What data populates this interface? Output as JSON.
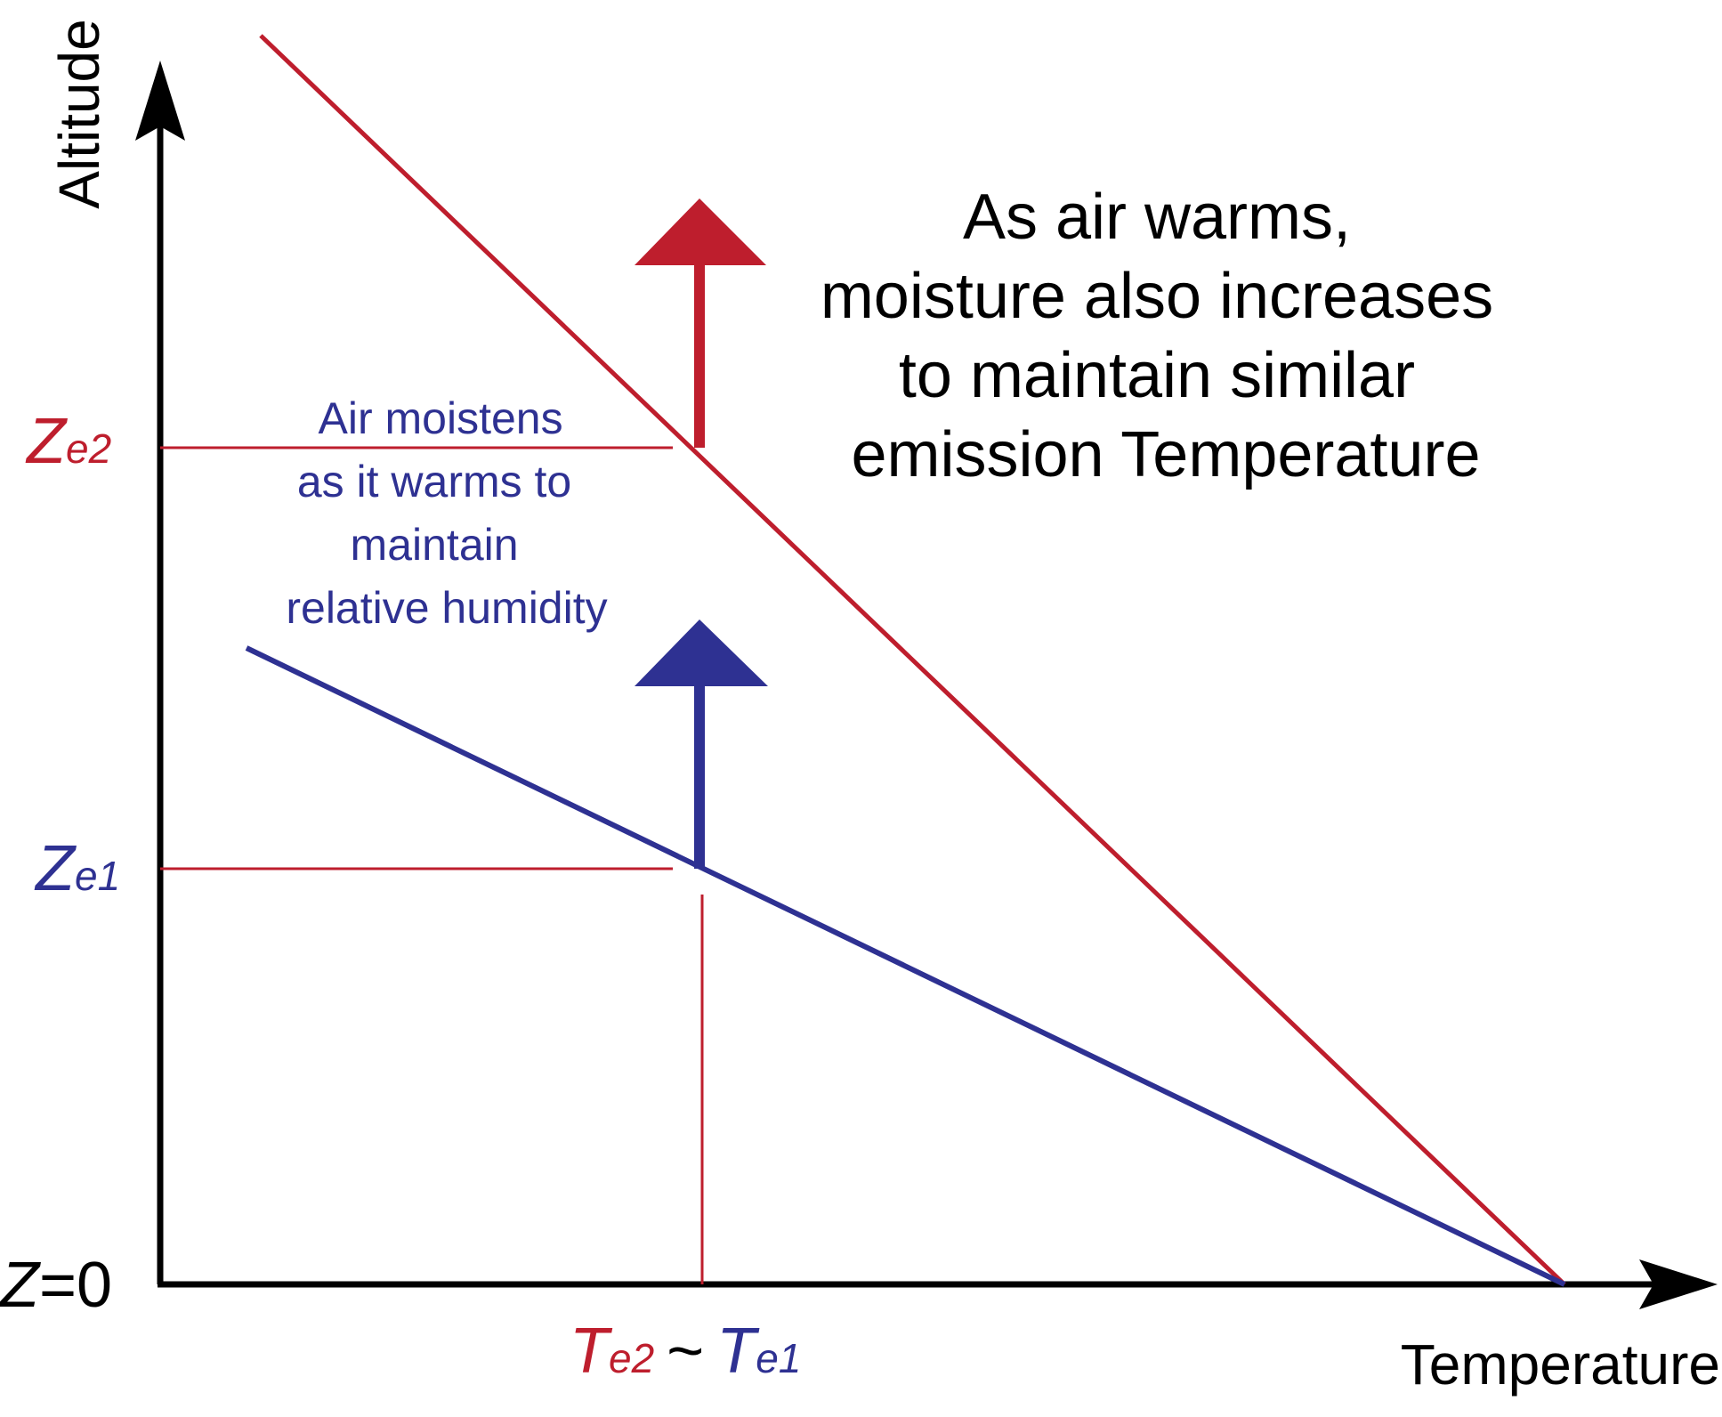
{
  "colors": {
    "red": "#be1e2d",
    "blue": "#2e3192",
    "black": "#000000"
  },
  "axes": {
    "y_label": "Altitude",
    "x_label": "Temperature"
  },
  "y_ticks": {
    "z0": {
      "base": "Z",
      "rest": "=0"
    },
    "ze1": {
      "base": "Z",
      "sub": "e1"
    },
    "ze2": {
      "base": "Z",
      "sub": "e2"
    }
  },
  "x_ticks": {
    "te2": {
      "base": "T",
      "sub": "e2"
    },
    "tilde": "~",
    "te1": {
      "base": "T",
      "sub": "e1"
    }
  },
  "profiles": [
    {
      "id": "warmer",
      "color": "red",
      "arrow_color": "red"
    },
    {
      "id": "baseline",
      "color": "blue",
      "arrow_color": "blue"
    }
  ],
  "annotations": {
    "main": [
      "As air warms,",
      "moisture also increases",
      "to maintain similar",
      "emission Temperature"
    ],
    "moist": [
      "Air moistens",
      "as it warms to",
      "maintain",
      "relative humidity"
    ]
  }
}
